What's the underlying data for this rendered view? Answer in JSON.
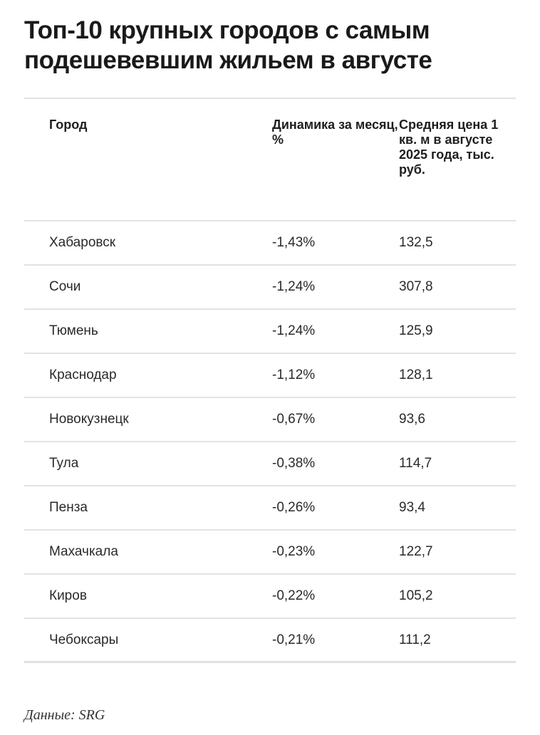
{
  "title": "Топ-10 крупных городов с самым подешевевшим жильем в августе",
  "table": {
    "headers": {
      "city": "Город",
      "change": "Динамика за месяц, %",
      "price": "Средняя цена 1 кв. м в августе 2025 года, тыс. руб."
    },
    "rows": [
      {
        "city": "Хабаровск",
        "change": "-1,43%",
        "price": "132,5"
      },
      {
        "city": "Сочи",
        "change": "-1,24%",
        "price": "307,8"
      },
      {
        "city": "Тюмень",
        "change": "-1,24%",
        "price": "125,9"
      },
      {
        "city": "Краснодар",
        "change": "-1,12%",
        "price": "128,1"
      },
      {
        "city": "Новокузнецк",
        "change": "-0,67%",
        "price": "93,6"
      },
      {
        "city": "Тула",
        "change": "-0,38%",
        "price": "114,7"
      },
      {
        "city": "Пенза",
        "change": "-0,26%",
        "price": "93,4"
      },
      {
        "city": "Махачкала",
        "change": "-0,23%",
        "price": "122,7"
      },
      {
        "city": "Киров",
        "change": "-0,22%",
        "price": "105,2"
      },
      {
        "city": "Чебоксары",
        "change": "-0,21%",
        "price": "111,2"
      }
    ]
  },
  "source": "Данные: SRG",
  "chart_data": {
    "type": "table",
    "title": "Топ-10 крупных городов с самым подешевевшим жильем в августе",
    "columns": [
      "Город",
      "Динамика за месяц, %",
      "Средняя цена 1 кв. м в августе 2025 года, тыс. руб."
    ],
    "categories": [
      "Хабаровск",
      "Сочи",
      "Тюмень",
      "Краснодар",
      "Новокузнецк",
      "Тула",
      "Пенза",
      "Махачкала",
      "Киров",
      "Чебоксары"
    ],
    "series": [
      {
        "name": "Динамика за месяц, %",
        "values": [
          -1.43,
          -1.24,
          -1.24,
          -1.12,
          -0.67,
          -0.38,
          -0.26,
          -0.23,
          -0.22,
          -0.21
        ]
      },
      {
        "name": "Средняя цена 1 кв. м в августе 2025 года, тыс. руб.",
        "values": [
          132.5,
          307.8,
          125.9,
          128.1,
          93.6,
          114.7,
          93.4,
          122.7,
          105.2,
          111.2
        ]
      }
    ],
    "source": "Данные: SRG"
  }
}
